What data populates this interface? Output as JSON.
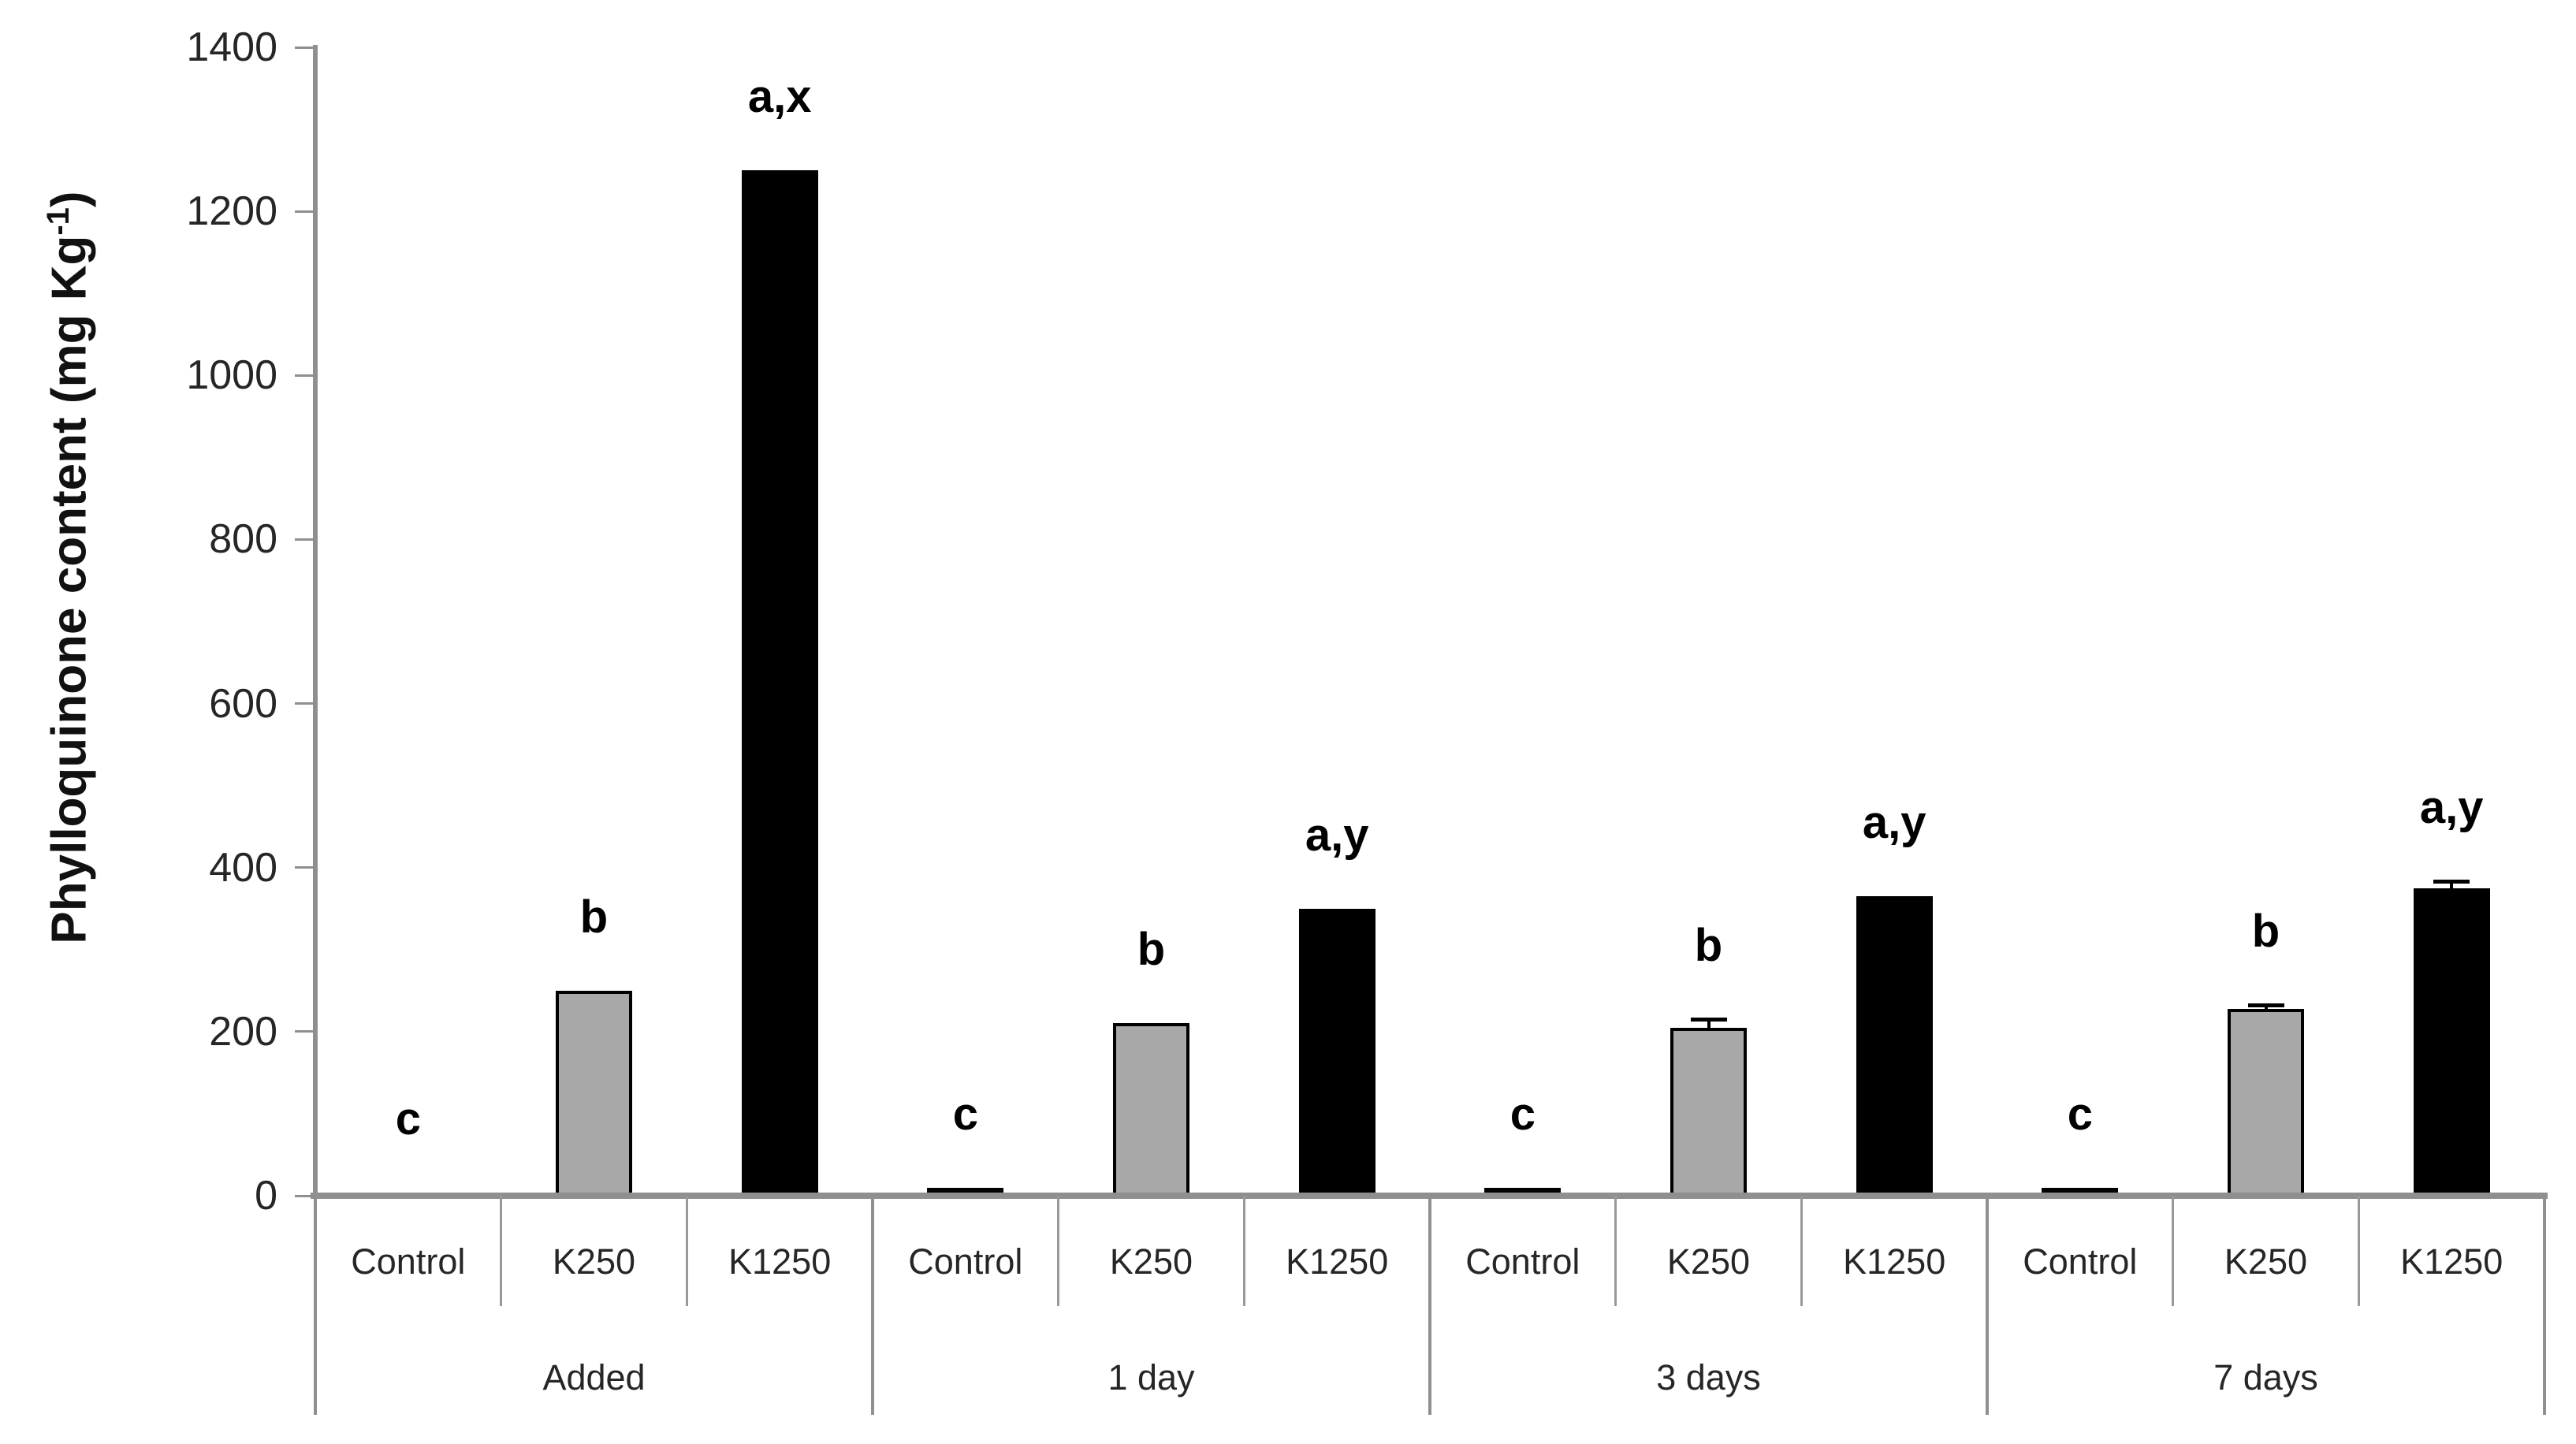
{
  "chart_data": {
    "type": "bar",
    "title": "",
    "ylabel": {
      "text": "Phylloquinone content (mg Kg",
      "sup": "-1",
      "close": ")"
    },
    "ylim": [
      0,
      1400
    ],
    "ytick_step": 200,
    "yticks": [
      0,
      200,
      400,
      600,
      800,
      1000,
      1200,
      1400
    ],
    "grid": false,
    "legend": "none",
    "groups": [
      "Added",
      "1 day",
      "3 days",
      "7 days"
    ],
    "treatments": [
      "Control",
      "K250",
      "K1250"
    ],
    "series": [
      {
        "name": "Control",
        "fill": "#000000",
        "values": [
          0,
          10,
          10,
          10
        ],
        "errors": [
          0,
          0,
          0,
          0
        ],
        "letters": [
          "c",
          "c",
          "c",
          "c"
        ]
      },
      {
        "name": "K250",
        "fill": "#a8a8a8",
        "border": "#000000",
        "values": [
          250,
          210,
          205,
          228
        ],
        "errors": [
          0,
          0,
          10,
          5
        ],
        "letters": [
          "b",
          "b",
          "b",
          "b"
        ]
      },
      {
        "name": "K1250",
        "fill": "#000000",
        "values": [
          1250,
          350,
          365,
          375
        ],
        "errors": [
          0,
          0,
          0,
          8
        ],
        "letters": [
          "a,x",
          "a,y",
          "a,y",
          "a,y"
        ]
      }
    ],
    "colors": {
      "axis": "#8f8f8f",
      "cell_separator": "#999999",
      "text": "#262626",
      "annotation": "#000000",
      "bar_gray": "#a8a8a8",
      "bar_black": "#000000"
    }
  }
}
